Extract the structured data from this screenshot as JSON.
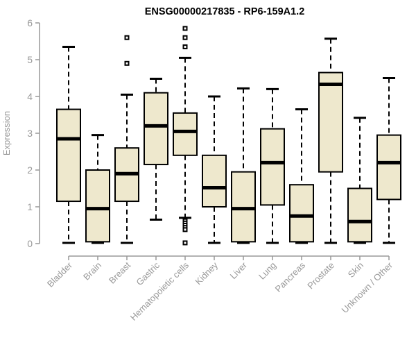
{
  "chart_data": {
    "type": "boxplot",
    "title": "ENSG00000217835 - RP6-159A1.2",
    "ylabel": "Expression",
    "xlabel": "",
    "ylim": [
      0,
      6
    ],
    "yticks": [
      0,
      1,
      2,
      3,
      4,
      5,
      6
    ],
    "grid": false,
    "legend": "none",
    "categories": [
      "Bladder",
      "Brain",
      "Breast",
      "Gastric",
      "Hematopoietic cells",
      "Kidney",
      "Liver",
      "Lung",
      "Pancreas",
      "Prostate",
      "Skin",
      "Unknown / Other"
    ],
    "series": [
      {
        "name": "Bladder",
        "low": 0.02,
        "q1": 1.15,
        "median": 2.85,
        "q3": 3.65,
        "high": 5.35,
        "outliers": []
      },
      {
        "name": "Brain",
        "low": 0.02,
        "q1": 0.05,
        "median": 0.95,
        "q3": 2.0,
        "high": 2.95,
        "outliers": []
      },
      {
        "name": "Breast",
        "low": 0.02,
        "q1": 1.15,
        "median": 1.9,
        "q3": 2.6,
        "high": 4.05,
        "outliers": [
          5.6,
          4.9
        ]
      },
      {
        "name": "Gastric",
        "low": 0.65,
        "q1": 2.15,
        "median": 3.2,
        "q3": 4.1,
        "high": 4.48,
        "outliers": []
      },
      {
        "name": "Hematopoietic cells",
        "low": 0.7,
        "q1": 2.4,
        "median": 3.05,
        "q3": 3.55,
        "high": 5.05,
        "outliers": [
          5.85,
          5.6,
          5.35,
          0.62,
          0.56,
          0.5,
          0.44,
          0.38,
          0.02
        ]
      },
      {
        "name": "Kidney",
        "low": 0.02,
        "q1": 1.0,
        "median": 1.52,
        "q3": 2.4,
        "high": 4.0,
        "outliers": []
      },
      {
        "name": "Liver",
        "low": 0.02,
        "q1": 0.05,
        "median": 0.95,
        "q3": 1.95,
        "high": 4.22,
        "outliers": []
      },
      {
        "name": "Lung",
        "low": 0.02,
        "q1": 1.05,
        "median": 2.2,
        "q3": 3.12,
        "high": 4.2,
        "outliers": []
      },
      {
        "name": "Pancreas",
        "low": 0.02,
        "q1": 0.05,
        "median": 0.75,
        "q3": 1.6,
        "high": 3.65,
        "outliers": []
      },
      {
        "name": "Prostate",
        "low": 0.02,
        "q1": 1.95,
        "median": 4.33,
        "q3": 4.65,
        "high": 5.57,
        "outliers": []
      },
      {
        "name": "Skin",
        "low": 0.02,
        "q1": 0.05,
        "median": 0.6,
        "q3": 1.5,
        "high": 3.42,
        "outliers": []
      },
      {
        "name": "Unknown / Other",
        "low": 0.02,
        "q1": 1.2,
        "median": 2.2,
        "q3": 2.95,
        "high": 4.5,
        "outliers": []
      }
    ]
  },
  "colors": {
    "background": "#FFFFFF",
    "box_fill": "#EEE8CD",
    "box_border": "#000000",
    "median": "#000000",
    "whisker": "#000000",
    "outlier": "#000000",
    "axis": "#999999",
    "tick_label": "#999999",
    "title": "#000000"
  }
}
